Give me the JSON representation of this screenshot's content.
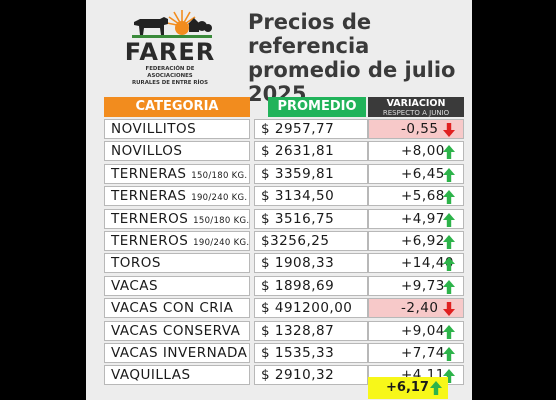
{
  "logo": {
    "name": "FARER",
    "subtitle_line1": "FEDERACIÓN DE ASOCIACIONES",
    "subtitle_line2": "RURALES DE ENTRE RÍOS"
  },
  "title": {
    "line1": "Precios de referencia",
    "line2": "promedio de julio",
    "line3": "2025"
  },
  "headers": {
    "categoria": "CATEGORIA",
    "promedio": "PROMEDIO",
    "variacion": "VARIACION",
    "variacion_sub": "RESPECTO A JUNIO"
  },
  "colors": {
    "orange": "#f28c1e",
    "green": "#21b35a",
    "dark": "#3a3a3a",
    "up": "#2db34a",
    "down": "#e02020",
    "negative_bg": "#f7c9c9",
    "total_bg": "#f7f719"
  },
  "rows": [
    {
      "category": "NOVILLITOS",
      "size": "",
      "price": "$ 2957,77",
      "variation": "-0,55",
      "direction": "down"
    },
    {
      "category": "NOVILLOS",
      "size": "",
      "price": "$ 2631,81",
      "variation": "+8,00",
      "direction": "up"
    },
    {
      "category": "TERNERAS",
      "size": "150/180 KG.",
      "price": "$ 3359,81",
      "variation": "+6,45",
      "direction": "up"
    },
    {
      "category": "TERNERAS",
      "size": "190/240 KG.",
      "price": "$ 3134,50",
      "variation": "+5,68",
      "direction": "up"
    },
    {
      "category": "TERNEROS",
      "size": "150/180 KG.",
      "price": "$ 3516,75",
      "variation": "+4,97",
      "direction": "up"
    },
    {
      "category": "TERNEROS",
      "size": "190/240 KG.",
      "price": "$3256,25",
      "variation": "+6,92",
      "direction": "up"
    },
    {
      "category": "TOROS",
      "size": "",
      "price": "$ 1908,33",
      "variation": "+14,40",
      "direction": "up"
    },
    {
      "category": "VACAS",
      "size": "",
      "price": "$ 1898,69",
      "variation": "+9,73",
      "direction": "up"
    },
    {
      "category": "VACAS CON CRIA",
      "size": "",
      "price": "$ 491200,00",
      "variation": "-2,40",
      "direction": "down"
    },
    {
      "category": "VACAS CONSERVA",
      "size": "",
      "price": "$ 1328,87",
      "variation": "+9,04",
      "direction": "up"
    },
    {
      "category": "VACAS INVERNADA",
      "size": "",
      "price": "$ 1535,33",
      "variation": "+7,74",
      "direction": "up"
    },
    {
      "category": "VAQUILLAS",
      "size": "",
      "price": "$ 2910,32",
      "variation": "+4,11",
      "direction": "up"
    }
  ],
  "total": {
    "variation": "+6,17",
    "direction": "up"
  }
}
